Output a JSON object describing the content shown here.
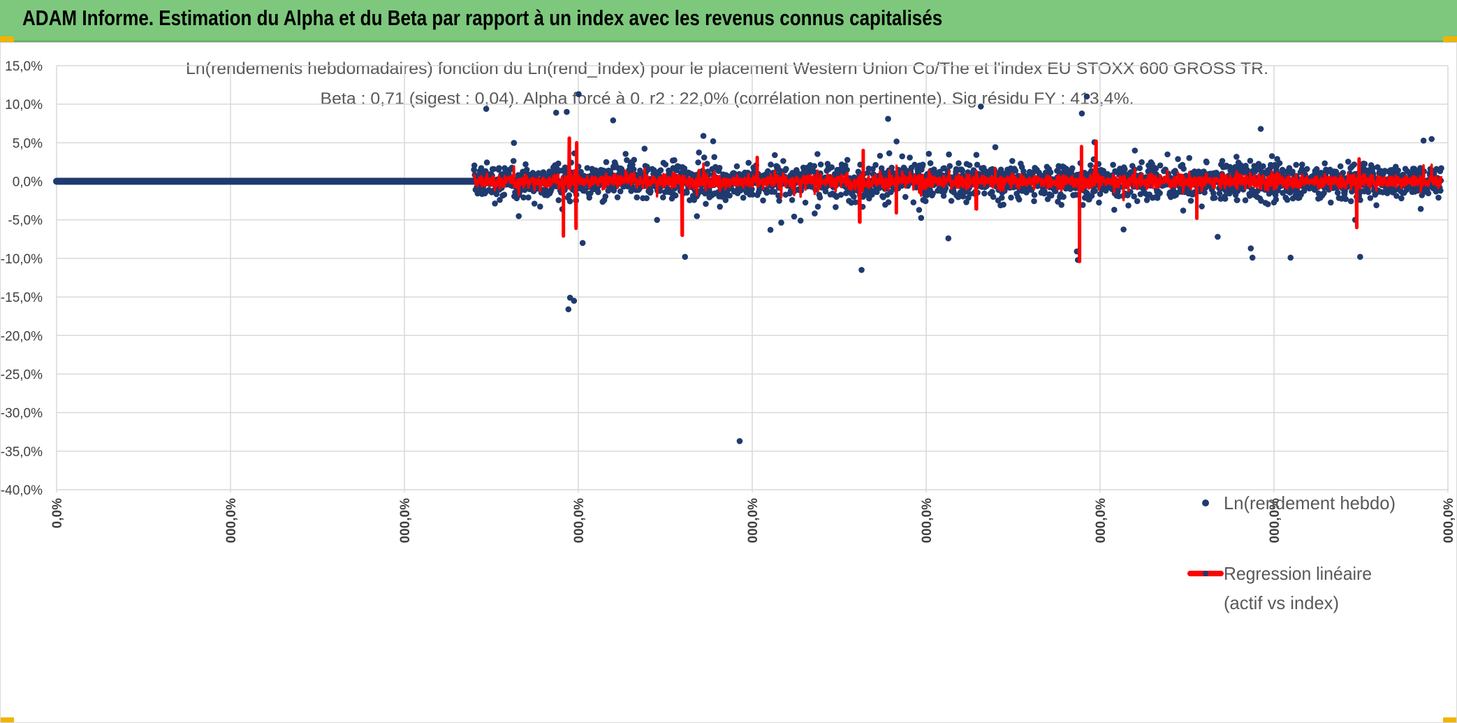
{
  "header": {
    "title": "ADAM Informe. Estimation du Alpha et du Beta par rapport à un index avec les revenus connus capitalisés"
  },
  "colors": {
    "banner": "#7dc87d",
    "points": "#1f3a6e",
    "regression": "#ff0000",
    "grid": "#d9d9d9"
  },
  "chart_data": {
    "type": "scatter",
    "title_lines": [
      "Ln(rendements hebdomadaires) fonction du Ln(rend_Index) pour le placement Western Union Co/The et l'index EU STOXX 600 GROSS TR.",
      "Beta : 0,71 (sigest : 0,04). Alpha forcé à 0. r2 : 22,0% (corrélation non pertinente). Sig résidu FY : 413,4%."
    ],
    "y_ticks": [
      "15,0%",
      "10,0%",
      "5,0%",
      "0,0%",
      "-5,0%",
      "-10,0%",
      "-15,0%",
      "-20,0%",
      "-25,0%",
      "-30,0%",
      "-35,0%",
      "-40,0%"
    ],
    "ylim": [
      -40,
      15
    ],
    "x_ticks": [
      "0,0%",
      "000,0%",
      "000,0%",
      "000,0%",
      "000,0%",
      "000,0%",
      "000,0%",
      "000,0%",
      "000,0%"
    ],
    "xlim": [
      0,
      4200
    ],
    "zero_run_end": 1260,
    "scatter_start": 1260,
    "scatter_end": 4180,
    "scatter_count": 2400,
    "return_range": [
      -11,
      11
    ],
    "outliers": [
      {
        "x": 1297,
        "y": 9.4
      },
      {
        "x": 1508,
        "y": 8.9
      },
      {
        "x": 1576,
        "y": 11.3
      },
      {
        "x": 1540,
        "y": 9.0
      },
      {
        "x": 1680,
        "y": 7.9
      },
      {
        "x": 1982,
        "y": 5.2
      },
      {
        "x": 2510,
        "y": 8.1
      },
      {
        "x": 2790,
        "y": 9.7
      },
      {
        "x": 3095,
        "y": 8.8
      },
      {
        "x": 3110,
        "y": 11.0
      },
      {
        "x": 3635,
        "y": 6.8
      },
      {
        "x": 1550,
        "y": -15.1
      },
      {
        "x": 1562,
        "y": -15.5
      },
      {
        "x": 1545,
        "y": -16.6
      },
      {
        "x": 1588,
        "y": -8.0
      },
      {
        "x": 1897,
        "y": -9.8
      },
      {
        "x": 2062,
        "y": -33.7
      },
      {
        "x": 2155,
        "y": -6.3
      },
      {
        "x": 2430,
        "y": -11.5
      },
      {
        "x": 2692,
        "y": -7.4
      },
      {
        "x": 3080,
        "y": -9.1
      },
      {
        "x": 3083,
        "y": -10.2
      },
      {
        "x": 3505,
        "y": -7.2
      },
      {
        "x": 3605,
        "y": -8.7
      },
      {
        "x": 3610,
        "y": -9.9
      },
      {
        "x": 3725,
        "y": -9.9
      },
      {
        "x": 3935,
        "y": -9.8
      },
      {
        "x": 3920,
        "y": -5.0
      }
    ],
    "regression_spikes": [
      {
        "x": 1530,
        "y": -7.1
      },
      {
        "x": 1568,
        "y": -6.1
      },
      {
        "x": 1548,
        "y": 5.6
      },
      {
        "x": 1570,
        "y": 5.0
      },
      {
        "x": 1889,
        "y": -7.0
      },
      {
        "x": 2115,
        "y": 3.1
      },
      {
        "x": 2425,
        "y": -5.3
      },
      {
        "x": 2435,
        "y": 4.0
      },
      {
        "x": 2535,
        "y": -4.1
      },
      {
        "x": 2777,
        "y": -3.6
      },
      {
        "x": 3088,
        "y": -10.4
      },
      {
        "x": 3094,
        "y": 4.5
      },
      {
        "x": 3138,
        "y": 5.2
      },
      {
        "x": 3442,
        "y": -4.8
      },
      {
        "x": 3925,
        "y": -6.0
      },
      {
        "x": 3932,
        "y": 2.9
      }
    ],
    "beta": 0.71,
    "legend": [
      {
        "label": "Ln(rendement hebdo)",
        "marker": "point"
      },
      {
        "label_lines": [
          "Regression linéaire",
          "(actif vs index)"
        ],
        "marker": "line"
      }
    ]
  }
}
